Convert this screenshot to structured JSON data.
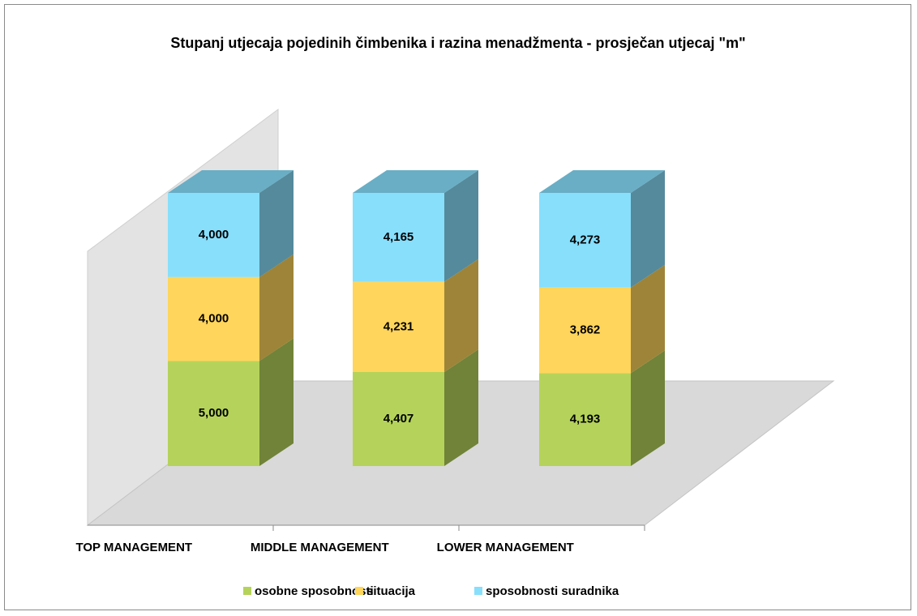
{
  "chart_data": {
    "type": "bar",
    "stacking": "percent",
    "title": "Stupanj utjecaja pojedinih čimbenika i razina menadžmenta - prosječan utjecaj \"m\"",
    "categories": [
      "TOP MANAGEMENT",
      "MIDDLE MANAGEMENT",
      "LOWER MANAGEMENT"
    ],
    "series": [
      {
        "name": "osobne sposobnosti",
        "color": "#b5d35a",
        "values": [
          5.0,
          4.407,
          4.193
        ],
        "value_labels": [
          "5,000",
          "4,407",
          "4,193"
        ]
      },
      {
        "name": "situacija",
        "color": "#ffd55b",
        "values": [
          4.0,
          4.231,
          3.862
        ],
        "value_labels": [
          "4,000",
          "4,231",
          "3,862"
        ]
      },
      {
        "name": "sposobnosti suradnika",
        "color": "#87dffc",
        "values": [
          4.0,
          4.165,
          4.273
        ],
        "value_labels": [
          "4,000",
          "4,165",
          "4,273"
        ]
      }
    ],
    "legend": "bottom"
  }
}
